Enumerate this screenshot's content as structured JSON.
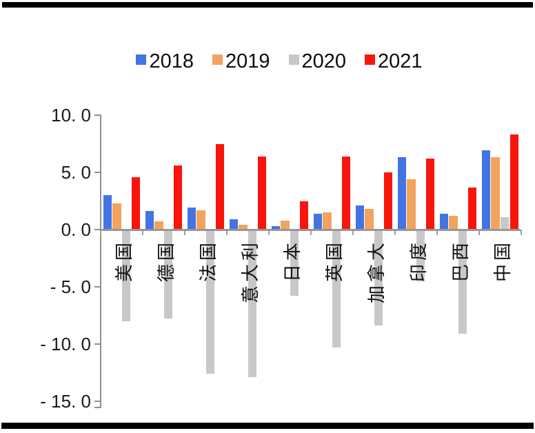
{
  "chart_data": {
    "type": "bar",
    "title": "",
    "categories": [
      "美国",
      "德国",
      "法国",
      "意大利",
      "日本",
      "英国",
      "加拿大",
      "印度",
      "巴西",
      "中国"
    ],
    "series": [
      {
        "name": "2018",
        "color": "#4274E3",
        "values": [
          3.0,
          1.6,
          1.9,
          0.9,
          0.3,
          1.4,
          2.1,
          6.3,
          1.4,
          6.9
        ]
      },
      {
        "name": "2019",
        "color": "#F2A35D",
        "values": [
          2.3,
          0.7,
          1.7,
          0.4,
          0.8,
          1.5,
          1.8,
          4.4,
          1.2,
          6.3
        ]
      },
      {
        "name": "2020",
        "color": "#C8C8C8",
        "values": [
          -8.0,
          -7.8,
          -12.6,
          -12.9,
          -5.8,
          -10.3,
          -8.4,
          -4.5,
          -9.1,
          1.1
        ]
      },
      {
        "name": "2021",
        "color": "#F9150B",
        "values": [
          4.6,
          5.6,
          7.5,
          6.4,
          2.5,
          6.4,
          5.0,
          6.2,
          3.7,
          8.3
        ]
      }
    ],
    "xlabel": "",
    "ylabel": "",
    "y_axis": {
      "min": -15.0,
      "max": 10.0,
      "tick_values": [
        10,
        5,
        0,
        -5,
        -10,
        -15
      ],
      "tick_labels": [
        "10. 0",
        "5. 0",
        "0. 0",
        "- 5. 0",
        "- 10. 0",
        "- 15. 0"
      ]
    },
    "legend_position": "top",
    "grid": false
  },
  "decor": {
    "top_bar_color": "#000000",
    "bottom_bar_color": "#000000",
    "axis_color": "#8f8f8f"
  }
}
